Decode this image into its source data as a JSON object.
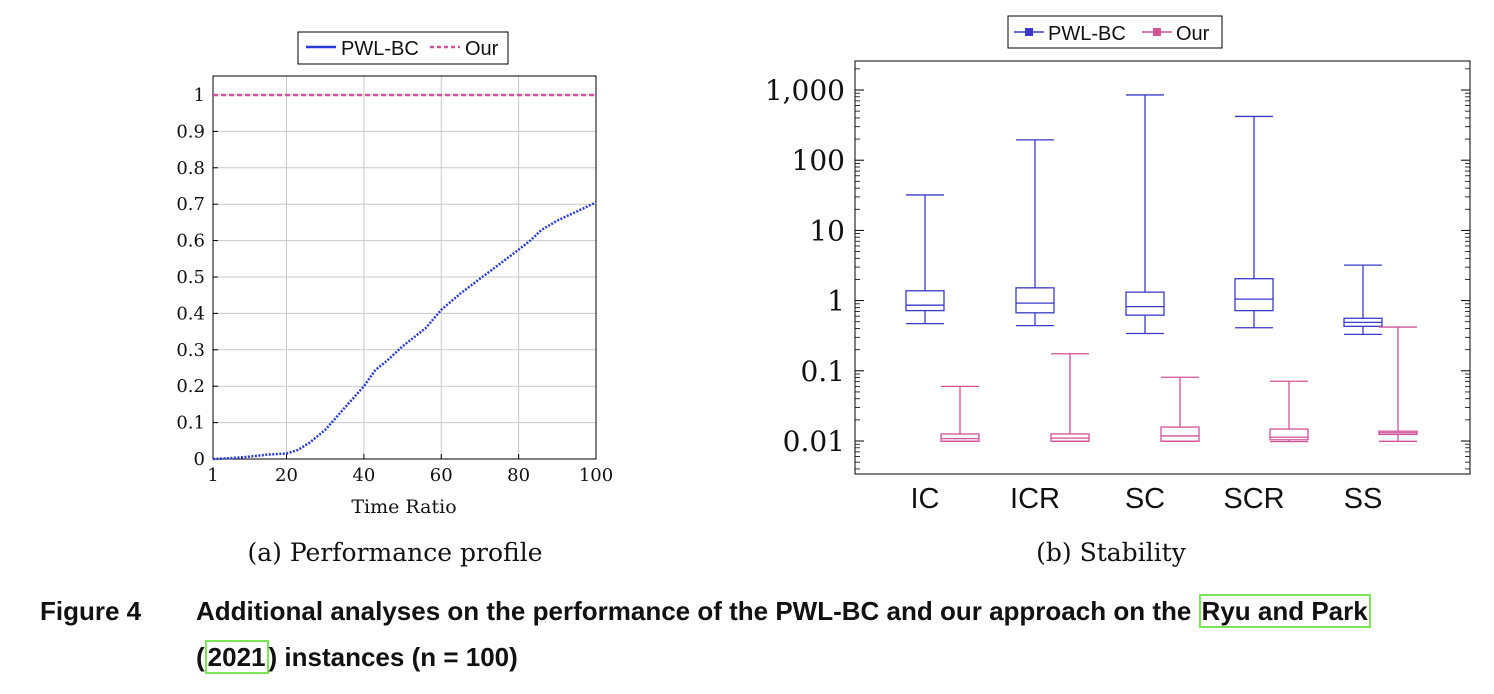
{
  "figure": {
    "label": "Figure 4",
    "caption_before": "Additional analyses on the performance of the PWL-BC and our approach on the ",
    "citation_authors": "Ryu and Park",
    "citation_open": "(",
    "citation_year": "2021",
    "caption_after": ") instances (n = 100)"
  },
  "chart_data": [
    {
      "type": "line",
      "subcaption": "(a) Performance profile",
      "xlabel": "Time Ratio",
      "ylabel": "",
      "xlim": [
        1,
        100
      ],
      "ylim": [
        0,
        1
      ],
      "xticks": [
        1,
        20,
        40,
        60,
        80,
        100
      ],
      "yticks": [
        0,
        0.1,
        0.2,
        0.3,
        0.4,
        0.5,
        0.6,
        0.7,
        0.8,
        0.9,
        1
      ],
      "ytick_labels": [
        "0",
        "0.1",
        "0.2",
        "0.3",
        "0.4",
        "0.5",
        "0.6",
        "0.7",
        "0.8",
        "0.9",
        "1"
      ],
      "grid": true,
      "legend": "top",
      "series": [
        {
          "name": "PWL-BC",
          "color": "#2b3bd6",
          "style": "dotted",
          "x": [
            1,
            5,
            10,
            15,
            20,
            23,
            26,
            30,
            35,
            40,
            43,
            46,
            50,
            53,
            56,
            60,
            65,
            70,
            75,
            80,
            83,
            86,
            90,
            95,
            100
          ],
          "y": [
            0,
            0.002,
            0.006,
            0.012,
            0.015,
            0.025,
            0.045,
            0.08,
            0.14,
            0.2,
            0.245,
            0.27,
            0.31,
            0.335,
            0.36,
            0.41,
            0.455,
            0.495,
            0.535,
            0.575,
            0.6,
            0.63,
            0.655,
            0.68,
            0.705
          ]
        },
        {
          "name": "Our",
          "color": "#d0529a",
          "style": "dashed",
          "x": [
            1,
            100
          ],
          "y": [
            1,
            1
          ]
        }
      ]
    },
    {
      "type": "box",
      "subcaption": "(b) Stability",
      "yscale": "log",
      "ylim": [
        0.003,
        2500
      ],
      "yticks": [
        0.01,
        0.1,
        1,
        10,
        100,
        1000
      ],
      "ytick_labels": [
        "0.01",
        "0.1",
        "1",
        "10",
        "100",
        "1,000"
      ],
      "categories": [
        "IC",
        "ICR",
        "SC",
        "SCR",
        "SS"
      ],
      "legend": "top",
      "series": [
        {
          "name": "PWL-BC",
          "color": "#3a3ac8",
          "boxes": [
            {
              "min": 0.47,
              "q1": 0.72,
              "median": 0.86,
              "q3": 1.38,
              "max": 32
            },
            {
              "min": 0.44,
              "q1": 0.67,
              "median": 0.92,
              "q3": 1.52,
              "max": 195
            },
            {
              "min": 0.34,
              "q1": 0.62,
              "median": 0.82,
              "q3": 1.32,
              "max": 850
            },
            {
              "min": 0.41,
              "q1": 0.72,
              "median": 1.05,
              "q3": 2.05,
              "max": 420
            },
            {
              "min": 0.33,
              "q1": 0.43,
              "median": 0.49,
              "q3": 0.56,
              "max": 3.2
            }
          ]
        },
        {
          "name": "Our",
          "color": "#d0529a",
          "boxes": [
            {
              "min": 0.0099,
              "q1": 0.0099,
              "median": 0.0108,
              "q3": 0.0126,
              "max": 0.06
            },
            {
              "min": 0.0099,
              "q1": 0.0099,
              "median": 0.011,
              "q3": 0.0126,
              "max": 0.175
            },
            {
              "min": 0.0099,
              "q1": 0.0099,
              "median": 0.0118,
              "q3": 0.0158,
              "max": 0.081
            },
            {
              "min": 0.0098,
              "q1": 0.0104,
              "median": 0.0113,
              "q3": 0.0148,
              "max": 0.071
            },
            {
              "min": 0.0099,
              "q1": 0.0124,
              "median": 0.0131,
              "q3": 0.0138,
              "max": 0.42
            }
          ]
        }
      ]
    }
  ]
}
